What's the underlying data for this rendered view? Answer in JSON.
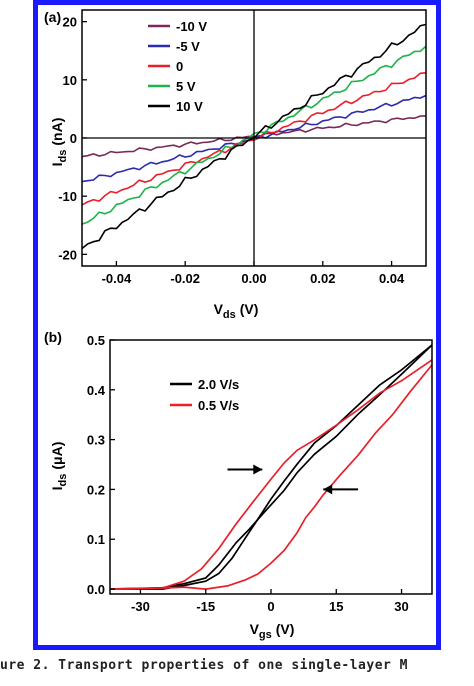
{
  "caption": "ure 2. Transport properties of one single-layer M",
  "chart_data": [
    {
      "panel": "(a)",
      "type": "line",
      "xlabel_main": "V",
      "xlabel_sub": "ds",
      "xlabel_unit": "(V)",
      "ylabel_main": "I",
      "ylabel_sub": "ds",
      "ylabel_unit": "(nA)",
      "xlim": [
        -0.05,
        0.05
      ],
      "ylim": [
        -22,
        22
      ],
      "xticks": [
        -0.04,
        -0.02,
        0.0,
        0.02,
        0.04
      ],
      "xtick_labels": [
        "-0.04",
        "-0.02",
        "0.00",
        "0.02",
        "0.04"
      ],
      "yticks": [
        -20,
        -10,
        0,
        10,
        20
      ],
      "ytick_labels": [
        "-20",
        "-10",
        "0",
        "10",
        "20"
      ],
      "zero_lines": true,
      "legend_position": "top-left",
      "series": [
        {
          "name": "-10 V",
          "color": "#7a2a5a",
          "x": [
            -0.05,
            0.05
          ],
          "y": [
            -3.2,
            3.8
          ]
        },
        {
          "name": "-5 V",
          "color": "#2b2bb0",
          "x": [
            -0.05,
            0.05
          ],
          "y": [
            -7.5,
            7.3
          ]
        },
        {
          "name": "0",
          "color": "#e8202a",
          "x": [
            -0.05,
            0.05
          ],
          "y": [
            -11.5,
            11.2
          ]
        },
        {
          "name": "5 V",
          "color": "#1fb34a",
          "x": [
            -0.05,
            0.05
          ],
          "y": [
            -14.8,
            15.8
          ]
        },
        {
          "name": "10 V",
          "color": "#000000",
          "x": [
            -0.05,
            0.05
          ],
          "y": [
            -19.0,
            19.5
          ]
        }
      ]
    },
    {
      "panel": "(b)",
      "type": "line",
      "xlabel_main": "V",
      "xlabel_sub": "gs",
      "xlabel_unit": "(V)",
      "ylabel_main": "I",
      "ylabel_sub": "ds",
      "ylabel_unit": "(μA)",
      "xlim": [
        -37,
        37
      ],
      "ylim": [
        -0.01,
        0.5
      ],
      "xticks": [
        -30,
        -15,
        0,
        15,
        30
      ],
      "xtick_labels": [
        "-30",
        "-15",
        "0",
        "15",
        "30"
      ],
      "yticks": [
        0.0,
        0.1,
        0.2,
        0.3,
        0.4,
        0.5
      ],
      "ytick_labels": [
        "0.0",
        "0.1",
        "0.2",
        "0.3",
        "0.4",
        "0.5"
      ],
      "legend_position": "top-left",
      "series": [
        {
          "name": "2.0 V/s",
          "color": "#000000",
          "loops": [
            {
              "x": [
                -37,
                -25,
                -20,
                -15,
                -12,
                -8,
                -5,
                -2,
                0,
                3,
                6,
                10,
                15,
                20,
                25,
                30,
                37
              ],
              "y": [
                0,
                0.002,
                0.008,
                0.025,
                0.05,
                0.09,
                0.12,
                0.15,
                0.17,
                0.2,
                0.23,
                0.27,
                0.31,
                0.35,
                0.39,
                0.43,
                0.49
              ]
            },
            {
              "x": [
                37,
                30,
                25,
                20,
                15,
                10,
                6,
                3,
                0,
                -3,
                -6,
                -9,
                -12,
                -15,
                -20,
                -25,
                -37
              ],
              "y": [
                0.49,
                0.44,
                0.41,
                0.37,
                0.33,
                0.29,
                0.25,
                0.22,
                0.18,
                0.14,
                0.1,
                0.06,
                0.035,
                0.015,
                0.004,
                0.001,
                0
              ]
            }
          ]
        },
        {
          "name": "0.5 V/s",
          "color": "#e8202a",
          "loops": [
            {
              "x": [
                -37,
                -25,
                -20,
                -16,
                -12,
                -8,
                -4,
                0,
                3,
                6,
                10,
                15,
                20,
                25,
                30,
                37
              ],
              "y": [
                0,
                0.005,
                0.015,
                0.04,
                0.08,
                0.13,
                0.18,
                0.22,
                0.25,
                0.28,
                0.3,
                0.33,
                0.36,
                0.39,
                0.42,
                0.46
              ]
            },
            {
              "x": [
                37,
                32,
                28,
                24,
                20,
                16,
                12,
                10,
                8,
                6,
                3,
                0,
                -3,
                -6,
                -10,
                -15,
                -20,
                -25,
                -37
              ],
              "y": [
                0.45,
                0.4,
                0.35,
                0.31,
                0.27,
                0.23,
                0.19,
                0.165,
                0.14,
                0.115,
                0.08,
                0.05,
                0.03,
                0.017,
                0.007,
                0.003,
                0.001,
                0,
                0
              ]
            }
          ]
        }
      ],
      "annotations": [
        {
          "type": "arrow",
          "direction": "right",
          "x_tail": -10,
          "x_head": -2,
          "y": 0.24
        },
        {
          "type": "arrow",
          "direction": "left",
          "x_tail": 20,
          "x_head": 12,
          "y": 0.2
        }
      ]
    }
  ]
}
